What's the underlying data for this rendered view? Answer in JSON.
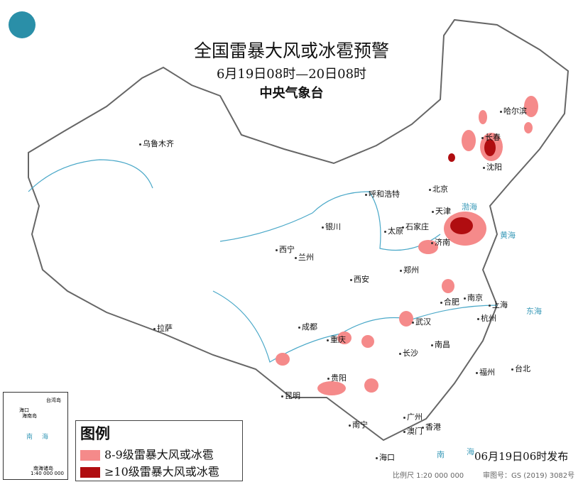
{
  "header": {
    "title": "全国雷暴大风或冰雹预警",
    "period": "6月19日08时—20日08时",
    "agency": "中央气象台"
  },
  "logo": {
    "icon": "cma-logo-icon",
    "color": "#2a8fa8"
  },
  "cities": [
    "乌鲁木齐",
    "哈尔滨",
    "长春",
    "沈阳",
    "北京",
    "天津",
    "呼和浩特",
    "石家庄",
    "太原",
    "济南",
    "银川",
    "西宁",
    "兰州",
    "郑州",
    "西安",
    "合肥",
    "南京",
    "上海",
    "武汉",
    "杭州",
    "成都",
    "重庆",
    "拉萨",
    "长沙",
    "南昌",
    "福州",
    "台北",
    "贵阳",
    "昆明",
    "广州",
    "南宁",
    "香港",
    "澳门",
    "海口"
  ],
  "seas": [
    "渤海",
    "黄海",
    "东海",
    "南",
    "海"
  ],
  "legend": {
    "title": "图例",
    "items": [
      {
        "label": "8-9级雷暴大风或冰雹",
        "color": "#f58a8a"
      },
      {
        "label": "≥10级雷暴大风或冰雹",
        "color": "#b00d10"
      }
    ]
  },
  "inset": {
    "labels": [
      "台湾岛",
      "海口",
      "海南岛",
      "南",
      "海",
      "南海诸岛"
    ],
    "scale": "1:40 000 000"
  },
  "footer": {
    "issued": "06月19日06时发布",
    "scale": "比例尺 1:20 000 000",
    "map_number": "审图号：GS (2019) 3082号"
  }
}
